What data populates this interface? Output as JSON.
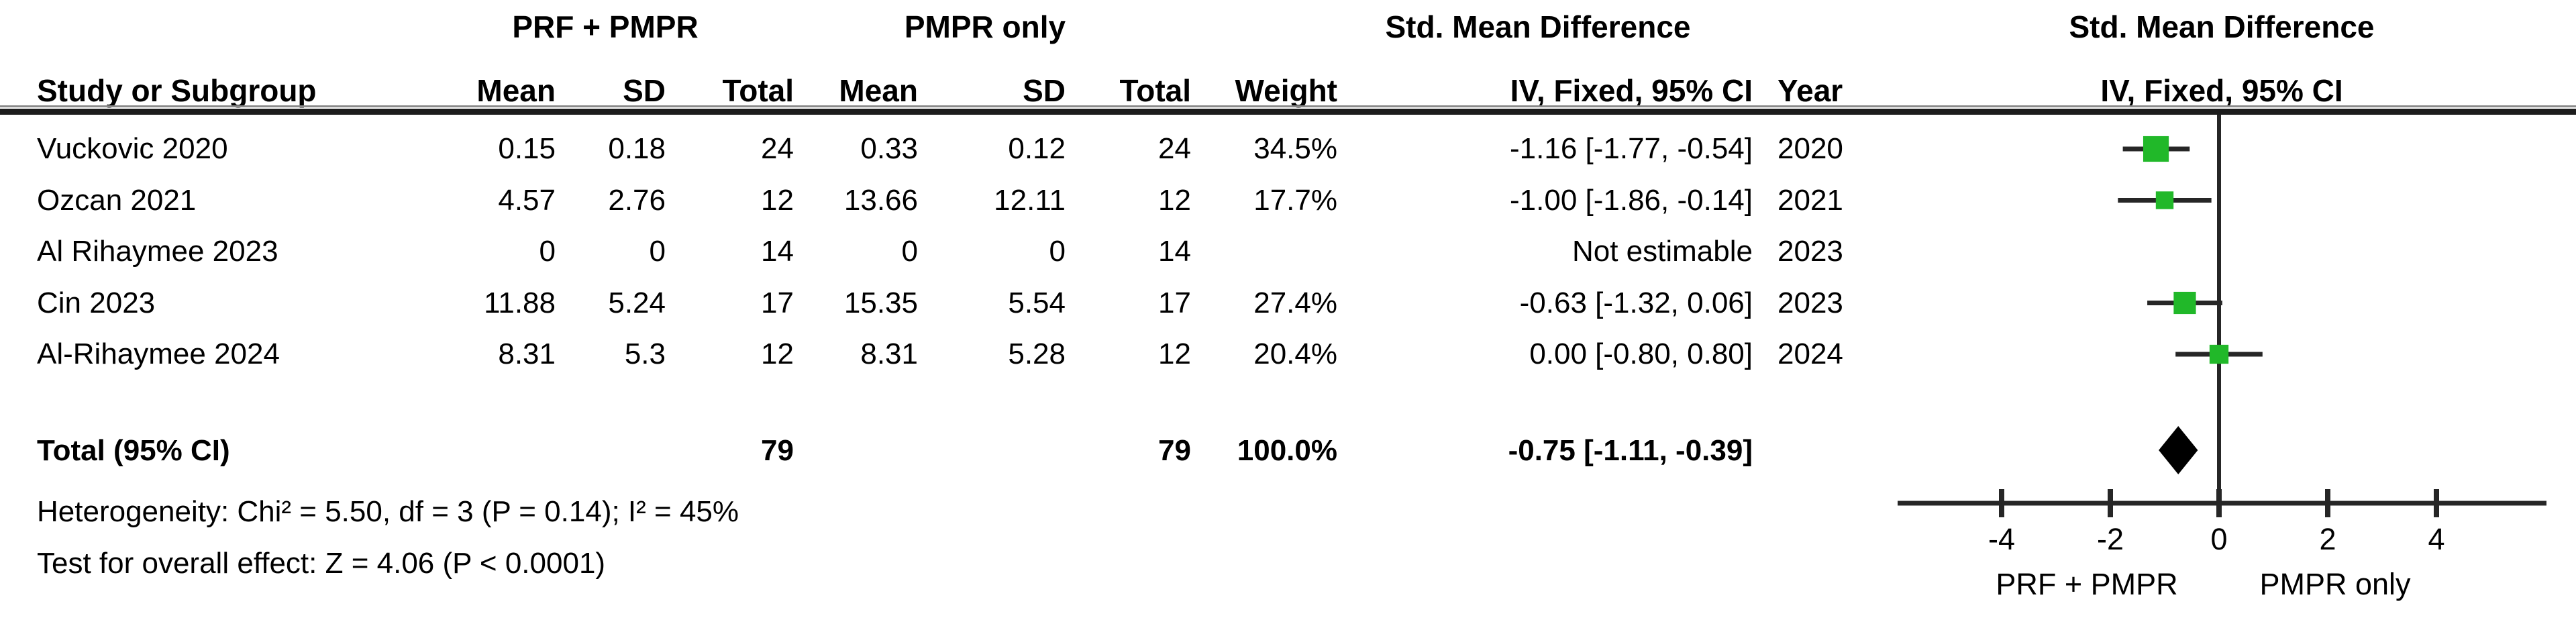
{
  "group_headers": {
    "experimental": "PRF + PMPR",
    "control": "PMPR only",
    "smd_table": "Std. Mean Difference",
    "smd_plot": "Std. Mean Difference"
  },
  "column_headers": {
    "study": "Study or Subgroup",
    "mean1": "Mean",
    "sd1": "SD",
    "total1": "Total",
    "mean2": "Mean",
    "sd2": "SD",
    "total2": "Total",
    "weight": "Weight",
    "effect_ci": "IV, Fixed, 95% CI",
    "year": "Year",
    "effect_ci_plot": "IV, Fixed, 95% CI"
  },
  "rows": [
    {
      "study": "Vuckovic 2020",
      "mean1": "0.15",
      "sd1": "0.18",
      "total1": "24",
      "mean2": "0.33",
      "sd2": "0.12",
      "total2": "24",
      "weight": "34.5%",
      "effect": "-1.16 [-1.77, -0.54]",
      "year": "2020"
    },
    {
      "study": "Ozcan 2021",
      "mean1": "4.57",
      "sd1": "2.76",
      "total1": "12",
      "mean2": "13.66",
      "sd2": "12.11",
      "total2": "12",
      "weight": "17.7%",
      "effect": "-1.00 [-1.86, -0.14]",
      "year": "2021"
    },
    {
      "study": "Al Rihaymee 2023",
      "mean1": "0",
      "sd1": "0",
      "total1": "14",
      "mean2": "0",
      "sd2": "0",
      "total2": "14",
      "weight": "",
      "effect": "Not estimable",
      "year": "2023"
    },
    {
      "study": "Cin 2023",
      "mean1": "11.88",
      "sd1": "5.24",
      "total1": "17",
      "mean2": "15.35",
      "sd2": "5.54",
      "total2": "17",
      "weight": "27.4%",
      "effect": "-0.63 [-1.32, 0.06]",
      "year": "2023"
    },
    {
      "study": "Al-Rihaymee 2024",
      "mean1": "8.31",
      "sd1": "5.3",
      "total1": "12",
      "mean2": "8.31",
      "sd2": "5.28",
      "total2": "12",
      "weight": "20.4%",
      "effect": "0.00 [-0.80, 0.80]",
      "year": "2024"
    }
  ],
  "total_row": {
    "label": "Total (95% CI)",
    "total1": "79",
    "total2": "79",
    "weight": "100.0%",
    "effect": "-0.75 [-1.11, -0.39]"
  },
  "footer": {
    "heterogeneity": "Heterogeneity: Chi² = 5.50, df = 3 (P = 0.14); I² = 45%",
    "overall_effect": "Test for overall effect: Z = 4.06 (P < 0.0001)"
  },
  "axis_labels": {
    "favours_left": "PRF + PMPR",
    "favours_right": "PMPR only"
  },
  "chart_data": {
    "type": "scatter",
    "subtype": "forest-plot",
    "title": "Std. Mean Difference  IV, Fixed, 95% CI",
    "xlabel_left": "PRF + PMPR",
    "xlabel_right": "PMPR only",
    "axis_ticks": [
      -4,
      -2,
      0,
      2,
      4
    ],
    "tick_labels": [
      "-4",
      "-2",
      "0",
      "2",
      "4"
    ],
    "xlim_visible": [
      -4,
      4
    ],
    "grid": false,
    "marker_color": "#21b829",
    "line_color": "#262626",
    "diamond_color": "#000000",
    "studies": [
      {
        "study": "Vuckovic 2020",
        "smd": -1.16,
        "ci_low": -1.77,
        "ci_high": -0.54,
        "weight_pct": 34.5,
        "year": 2020
      },
      {
        "study": "Ozcan 2021",
        "smd": -1.0,
        "ci_low": -1.86,
        "ci_high": -0.14,
        "weight_pct": 17.7,
        "year": 2021
      },
      {
        "study": "Al Rihaymee 2023",
        "smd": null,
        "ci_low": null,
        "ci_high": null,
        "weight_pct": null,
        "year": 2023,
        "note": "Not estimable"
      },
      {
        "study": "Cin 2023",
        "smd": -0.63,
        "ci_low": -1.32,
        "ci_high": 0.06,
        "weight_pct": 27.4,
        "year": 2023
      },
      {
        "study": "Al-Rihaymee 2024",
        "smd": 0.0,
        "ci_low": -0.8,
        "ci_high": 0.8,
        "weight_pct": 20.4,
        "year": 2024
      }
    ],
    "total": {
      "label": "Total (95% CI)",
      "smd": -0.75,
      "ci_low": -1.11,
      "ci_high": -0.39,
      "total_exp": 79,
      "total_ctl": 79,
      "weight_pct": 100.0
    },
    "heterogeneity": {
      "chi2": 5.5,
      "df": 3,
      "p": 0.14,
      "i2_pct": 45
    },
    "overall_effect": {
      "z": 4.06,
      "p": "< 0.0001"
    }
  }
}
